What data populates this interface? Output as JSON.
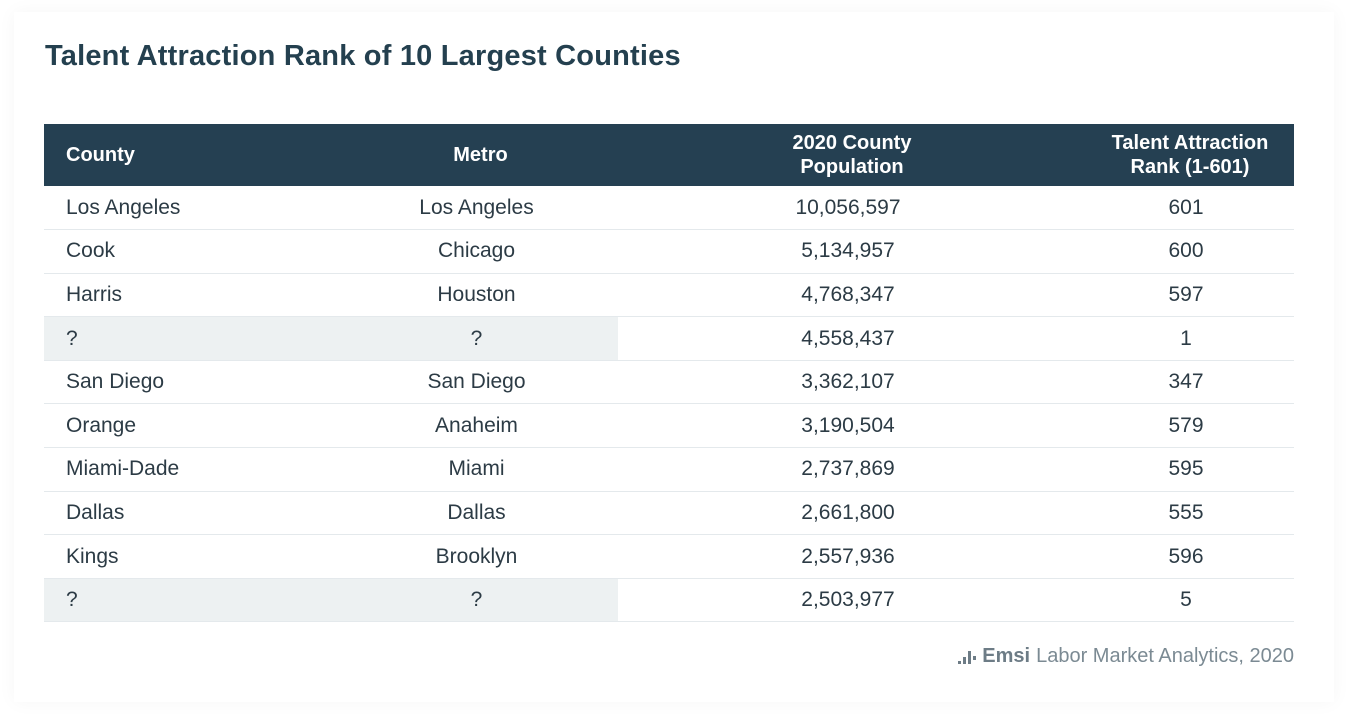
{
  "title": "Talent Attraction Rank of 10 Largest Counties",
  "colors": {
    "header_bg": "#254052",
    "title": "#24404f",
    "masked_cell_bg": "#edf1f2"
  },
  "table": {
    "headers": {
      "county": "County",
      "metro": "Metro",
      "population_line1": "2020 County",
      "population_line2": "Population",
      "rank_line1": "Talent Attraction",
      "rank_line2": "Rank (1-601)"
    },
    "rows": [
      {
        "county": "Los Angeles",
        "metro": "Los Angeles",
        "population": "10,056,597",
        "rank": "601"
      },
      {
        "county": "Cook",
        "metro": "Chicago",
        "population": "5,134,957",
        "rank": "600"
      },
      {
        "county": "Harris",
        "metro": "Houston",
        "population": "4,768,347",
        "rank": "597"
      },
      {
        "county": "?",
        "metro": "?",
        "population": "4,558,437",
        "rank": "1",
        "masked": true
      },
      {
        "county": "San Diego",
        "metro": "San Diego",
        "population": "3,362,107",
        "rank": "347"
      },
      {
        "county": "Orange",
        "metro": "Anaheim",
        "population": "3,190,504",
        "rank": "579"
      },
      {
        "county": "Miami-Dade",
        "metro": "Miami",
        "population": "2,737,869",
        "rank": "595"
      },
      {
        "county": "Dallas",
        "metro": "Dallas",
        "population": "2,661,800",
        "rank": "555"
      },
      {
        "county": "Kings",
        "metro": "Brooklyn",
        "population": "2,557,936",
        "rank": "596"
      },
      {
        "county": "?",
        "metro": "?",
        "population": "2,503,977",
        "rank": "5",
        "masked": true
      }
    ]
  },
  "source": {
    "logo_icon": "bar-chart-logo-icon",
    "brand": "Emsi",
    "text": "Labor Market Analytics, 2020"
  },
  "chart_data": {
    "type": "table",
    "title": "Talent Attraction Rank of 10 Largest Counties",
    "columns": [
      "County",
      "Metro",
      "2020 County Population",
      "Talent Attraction Rank (1-601)"
    ],
    "rows": [
      [
        "Los Angeles",
        "Los Angeles",
        10056597,
        601
      ],
      [
        "Cook",
        "Chicago",
        5134957,
        600
      ],
      [
        "Harris",
        "Houston",
        4768347,
        597
      ],
      [
        "?",
        "?",
        4558437,
        1
      ],
      [
        "San Diego",
        "San Diego",
        3362107,
        347
      ],
      [
        "Orange",
        "Anaheim",
        3190504,
        579
      ],
      [
        "Miami-Dade",
        "Miami",
        2737869,
        595
      ],
      [
        "Dallas",
        "Dallas",
        2661800,
        555
      ],
      [
        "Kings",
        "Brooklyn",
        2557936,
        596
      ],
      [
        "?",
        "?",
        2503977,
        5
      ]
    ]
  }
}
